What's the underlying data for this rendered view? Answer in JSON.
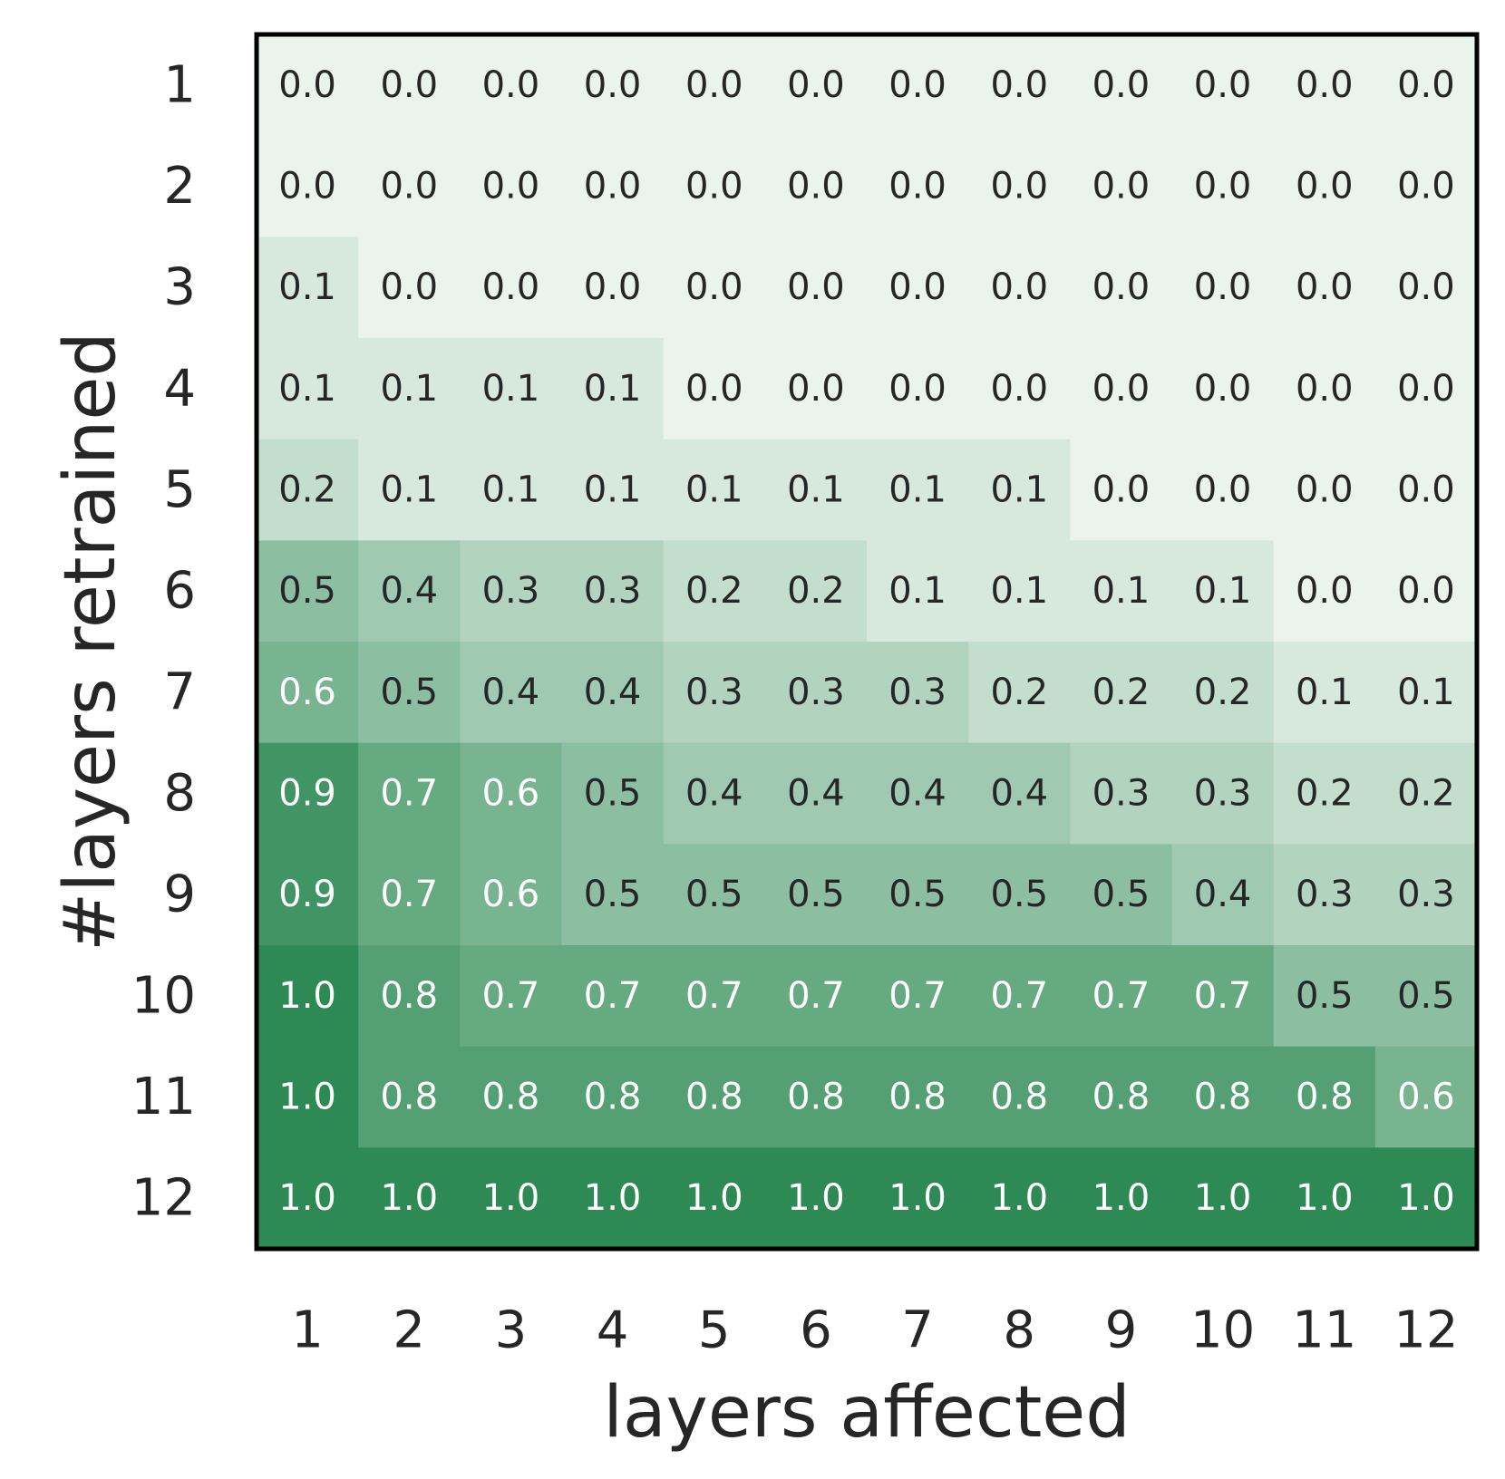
{
  "chart_data": {
    "type": "heatmap",
    "xlabel": "layers affected",
    "ylabel": "#layers retrained",
    "x_categories": [
      "1",
      "2",
      "3",
      "4",
      "5",
      "6",
      "7",
      "8",
      "9",
      "10",
      "11",
      "12"
    ],
    "y_categories": [
      "1",
      "2",
      "3",
      "4",
      "5",
      "6",
      "7",
      "8",
      "9",
      "10",
      "11",
      "12"
    ],
    "values": [
      [
        0.0,
        0.0,
        0.0,
        0.0,
        0.0,
        0.0,
        0.0,
        0.0,
        0.0,
        0.0,
        0.0,
        0.0
      ],
      [
        0.0,
        0.0,
        0.0,
        0.0,
        0.0,
        0.0,
        0.0,
        0.0,
        0.0,
        0.0,
        0.0,
        0.0
      ],
      [
        0.1,
        0.0,
        0.0,
        0.0,
        0.0,
        0.0,
        0.0,
        0.0,
        0.0,
        0.0,
        0.0,
        0.0
      ],
      [
        0.1,
        0.1,
        0.1,
        0.1,
        0.0,
        0.0,
        0.0,
        0.0,
        0.0,
        0.0,
        0.0,
        0.0
      ],
      [
        0.2,
        0.1,
        0.1,
        0.1,
        0.1,
        0.1,
        0.1,
        0.1,
        0.0,
        0.0,
        0.0,
        0.0
      ],
      [
        0.5,
        0.4,
        0.3,
        0.3,
        0.2,
        0.2,
        0.1,
        0.1,
        0.1,
        0.1,
        0.0,
        0.0
      ],
      [
        0.6,
        0.5,
        0.4,
        0.4,
        0.3,
        0.3,
        0.3,
        0.2,
        0.2,
        0.2,
        0.1,
        0.1
      ],
      [
        0.9,
        0.7,
        0.6,
        0.5,
        0.4,
        0.4,
        0.4,
        0.4,
        0.3,
        0.3,
        0.2,
        0.2
      ],
      [
        0.9,
        0.7,
        0.6,
        0.5,
        0.5,
        0.5,
        0.5,
        0.5,
        0.5,
        0.4,
        0.3,
        0.3
      ],
      [
        1.0,
        0.8,
        0.7,
        0.7,
        0.7,
        0.7,
        0.7,
        0.7,
        0.7,
        0.7,
        0.5,
        0.5
      ],
      [
        1.0,
        0.8,
        0.8,
        0.8,
        0.8,
        0.8,
        0.8,
        0.8,
        0.8,
        0.8,
        0.8,
        0.6
      ],
      [
        1.0,
        1.0,
        1.0,
        1.0,
        1.0,
        1.0,
        1.0,
        1.0,
        1.0,
        1.0,
        1.0,
        1.0
      ]
    ],
    "value_range": [
      0.0,
      1.0
    ],
    "colormap": {
      "low": "#eaf3ec",
      "high": "#2e8a55"
    },
    "label_colors": {
      "dark": "#262626",
      "light": "#ffffff"
    },
    "frame_color": "#000000",
    "grid": false,
    "legend": "none"
  }
}
